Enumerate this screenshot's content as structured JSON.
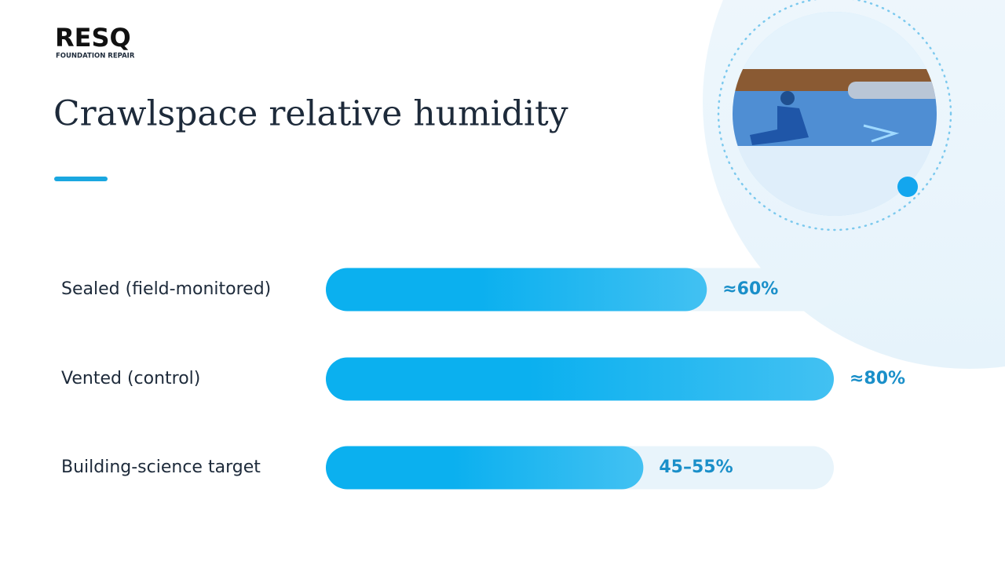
{
  "logo": {
    "name": "RESQ",
    "tagline": "FOUNDATION REPAIR"
  },
  "chart_data": {
    "type": "bar",
    "orientation": "horizontal",
    "title": "Crawlspace relative humidity",
    "categories": [
      "Sealed (field-monitored)",
      "Vented (control)",
      "Building-science target"
    ],
    "values": [
      60,
      80,
      50
    ],
    "value_labels": [
      "≈60%",
      "≈80%",
      "45–55%"
    ],
    "color": "#0bb0ef",
    "xlim": [
      0,
      80
    ]
  }
}
